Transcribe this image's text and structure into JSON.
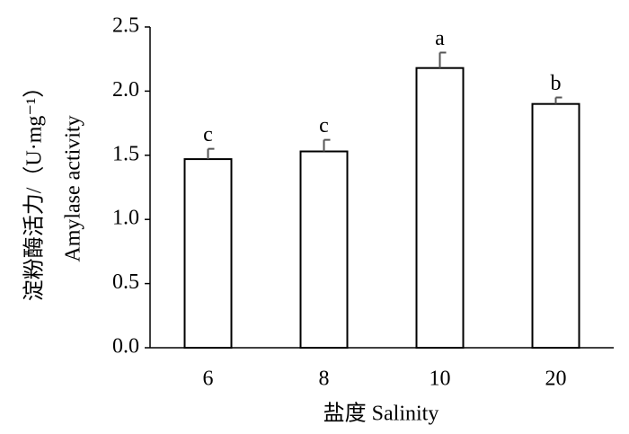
{
  "chart_data": {
    "type": "bar",
    "y_label_lines": [
      "淀粉酶活力/（U·mg⁻¹）",
      "Amylase activity"
    ],
    "x_label": "盐度 Salinity",
    "categories": [
      "6",
      "8",
      "10",
      "20"
    ],
    "values": [
      1.47,
      1.53,
      2.18,
      1.9
    ],
    "errors": [
      0.08,
      0.09,
      0.12,
      0.05
    ],
    "letters": [
      "c",
      "c",
      "a",
      "b"
    ],
    "color": "#ffffff",
    "ylim": [
      0,
      2.5
    ],
    "yticks": [
      {
        "value": 0,
        "label": "0.0"
      },
      0.5,
      {
        "value": 1,
        "label": "1.0"
      },
      1.5,
      {
        "value": 2,
        "label": "2.0"
      },
      2.5
    ],
    "grid": false
  }
}
